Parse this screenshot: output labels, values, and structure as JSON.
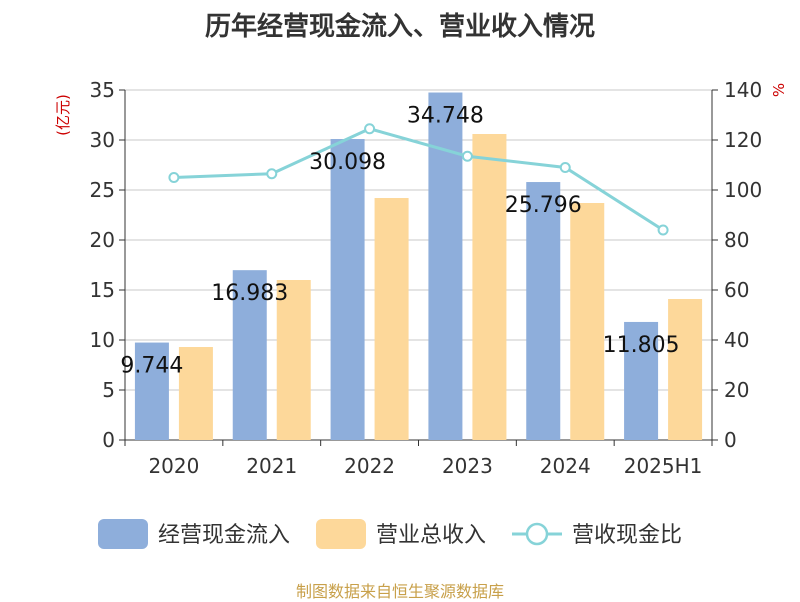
{
  "chart_data": {
    "type": "bar",
    "title": "历年经营现金流入、营业收入情况",
    "categories": [
      "2020",
      "2021",
      "2022",
      "2023",
      "2024",
      "2025H1"
    ],
    "series": [
      {
        "name": "经营现金流入",
        "type": "bar",
        "axis": "left",
        "color": "#8eaedb",
        "values": [
          9.744,
          16.983,
          30.098,
          34.748,
          25.796,
          11.805
        ],
        "data_labels": [
          "9.744",
          "16.983",
          "30.098",
          "34.748",
          "25.796",
          "11.805"
        ]
      },
      {
        "name": "营业总收入",
        "type": "bar",
        "axis": "left",
        "color": "#fdd89a",
        "values": [
          9.3,
          16.0,
          24.2,
          30.6,
          23.7,
          14.1
        ]
      },
      {
        "name": "营收现金比",
        "type": "line",
        "axis": "right",
        "color": "#86d3d8",
        "values": [
          105,
          106.5,
          124.5,
          113.5,
          109,
          84
        ]
      }
    ],
    "y_left": {
      "label": "(亿元)",
      "min": 0,
      "max": 35,
      "ticks": [
        0,
        5,
        10,
        15,
        20,
        25,
        30,
        35
      ]
    },
    "y_right": {
      "label": "%",
      "min": 0,
      "max": 140,
      "ticks": [
        0,
        20,
        40,
        60,
        80,
        100,
        120,
        140
      ]
    },
    "grid": true,
    "legend_position": "bottom",
    "source": "制图数据来自恒生聚源数据库",
    "label_color": "#cc0000"
  }
}
